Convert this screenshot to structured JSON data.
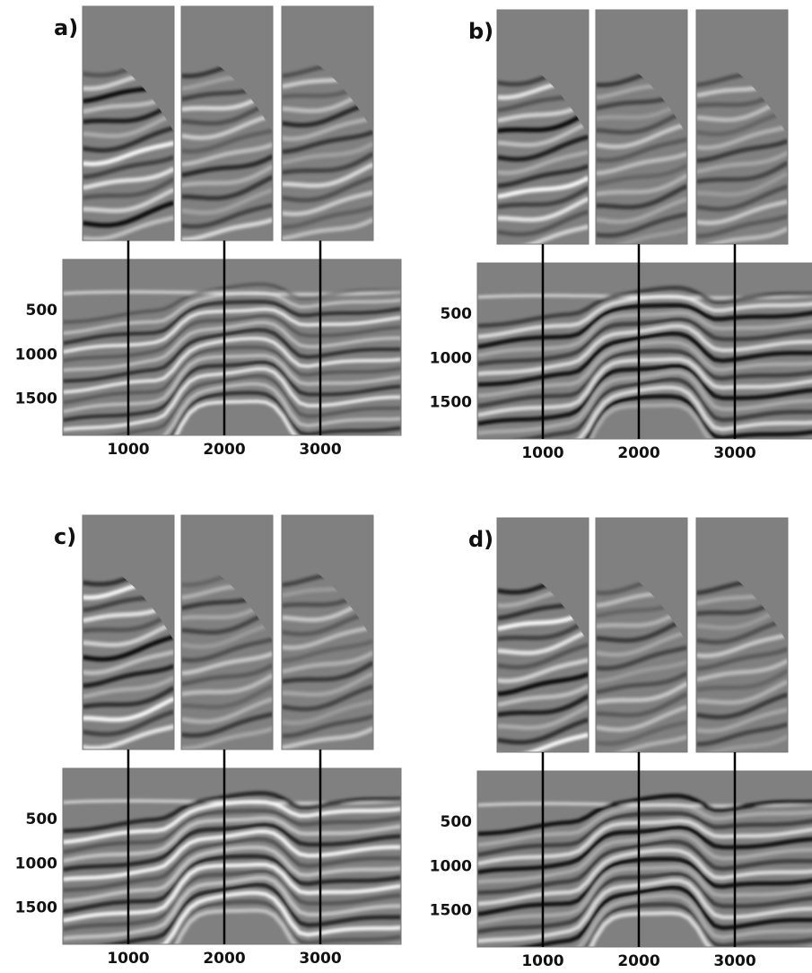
{
  "panels": [
    {
      "label": "a)",
      "xlim": [
        318,
        3841
      ],
      "ylim": [
        -80,
        1910
      ],
      "xticks": [
        1000,
        2000,
        3000
      ],
      "yticks": [
        500,
        1000,
        1500
      ]
    },
    {
      "label": "b)",
      "xlim": [
        318,
        3841
      ],
      "ylim": [
        -80,
        1910
      ],
      "xticks": [
        1000,
        2000,
        3000
      ],
      "yticks": [
        500,
        1000,
        1500
      ]
    },
    {
      "label": "c)",
      "xlim": [
        318,
        3841
      ],
      "ylim": [
        -80,
        1910
      ],
      "xticks": [
        1000,
        2000,
        3000
      ],
      "yticks": [
        500,
        1000,
        1500
      ]
    },
    {
      "label": "d)",
      "xlim": [
        318,
        3841
      ],
      "ylim": [
        -80,
        1910
      ],
      "xticks": [
        1000,
        2000,
        3000
      ],
      "yticks": [
        500,
        1000,
        1500
      ]
    }
  ]
}
